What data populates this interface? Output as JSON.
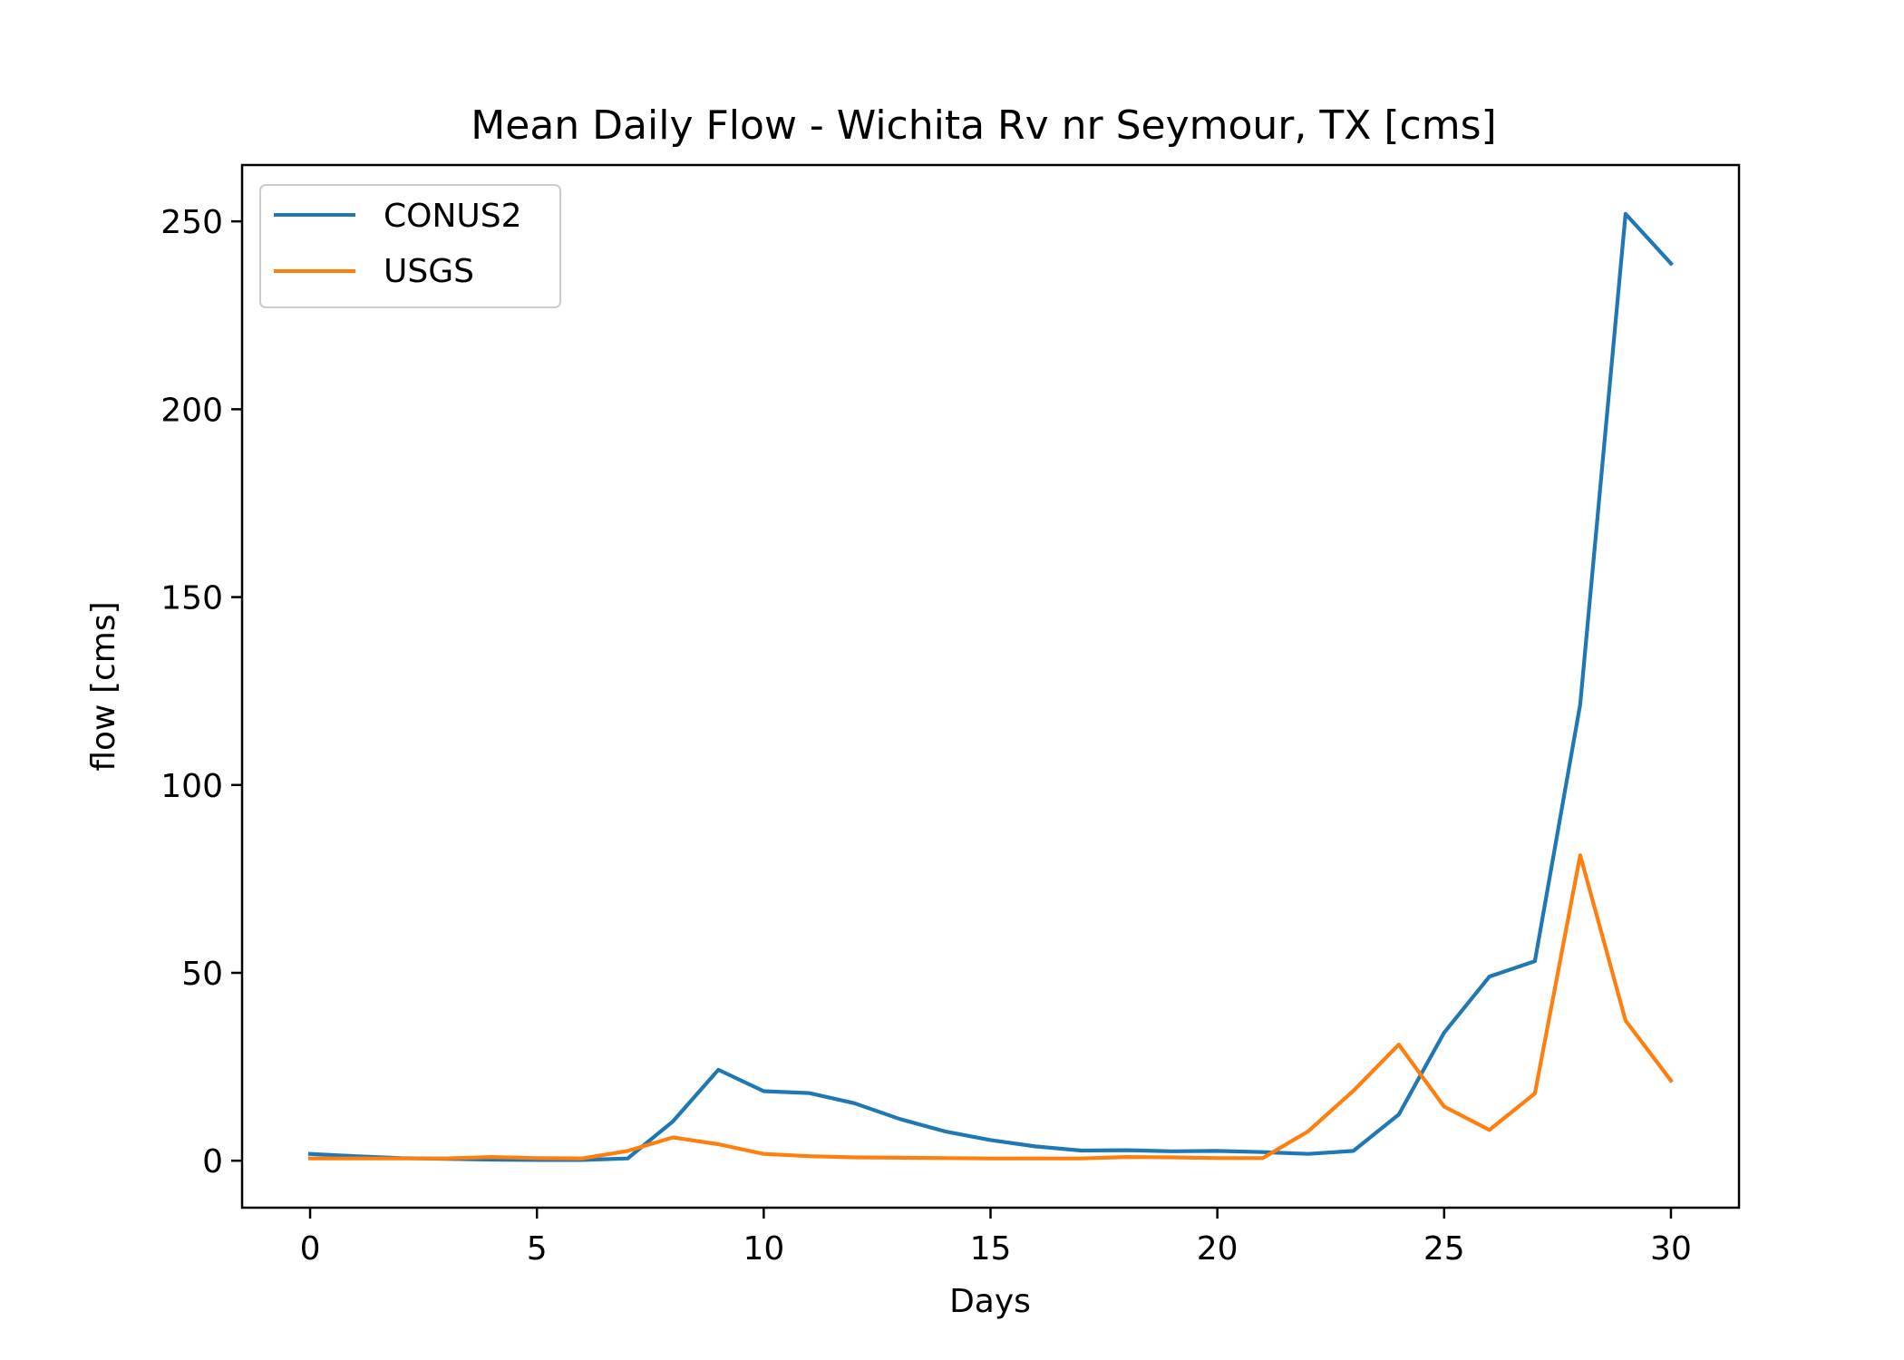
{
  "chart_data": {
    "type": "line",
    "title": "Mean Daily Flow - Wichita Rv nr Seymour, TX [cms]",
    "xlabel": "Days",
    "ylabel": "flow [cms]",
    "xlim": [
      -1.5,
      31.5
    ],
    "ylim": [
      -12.5,
      265
    ],
    "xticks": [
      0,
      5,
      10,
      15,
      20,
      25,
      30
    ],
    "yticks": [
      0,
      50,
      100,
      150,
      200,
      250
    ],
    "grid": false,
    "legend_placement": "upper left",
    "x": [
      0,
      1,
      2,
      3,
      4,
      5,
      6,
      7,
      8,
      9,
      10,
      11,
      12,
      13,
      14,
      15,
      16,
      17,
      18,
      19,
      20,
      21,
      22,
      23,
      24,
      25,
      26,
      27,
      28,
      29,
      30
    ],
    "series": [
      {
        "name": "CONUS2",
        "color": "#1f77b4",
        "values": [
          1.8,
          1.2,
          0.7,
          0.5,
          0.3,
          0.2,
          0.2,
          0.6,
          10.5,
          24.2,
          18.5,
          18.0,
          15.3,
          11.1,
          7.8,
          5.5,
          3.8,
          2.7,
          2.8,
          2.5,
          2.6,
          2.3,
          1.8,
          2.6,
          12.3,
          34.1,
          49.0,
          53.1,
          121.5,
          252.0,
          238.8
        ]
      },
      {
        "name": "USGS",
        "color": "#ff7f0e",
        "values": [
          0.6,
          0.6,
          0.6,
          0.6,
          1.0,
          0.7,
          0.6,
          2.6,
          6.2,
          4.4,
          1.8,
          1.2,
          0.9,
          0.8,
          0.7,
          0.6,
          0.6,
          0.6,
          1.0,
          0.9,
          0.7,
          0.7,
          7.8,
          18.6,
          30.9,
          14.4,
          8.2,
          17.9,
          81.3,
          37.3,
          21.3
        ]
      }
    ]
  }
}
